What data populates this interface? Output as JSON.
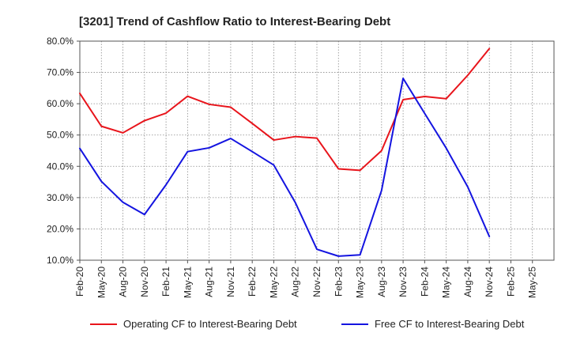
{
  "chart_data": {
    "type": "line",
    "title": "[3201]  Trend of Cashflow Ratio to Interest-Bearing Debt",
    "xlabel": "",
    "ylabel": "",
    "categories": [
      "Feb-20",
      "May-20",
      "Aug-20",
      "Nov-20",
      "Feb-21",
      "May-21",
      "Aug-21",
      "Nov-21",
      "Feb-22",
      "May-22",
      "Aug-22",
      "Nov-22",
      "Feb-23",
      "May-23",
      "Aug-23",
      "Nov-23",
      "Feb-24",
      "May-24",
      "Aug-24",
      "Nov-24",
      "Feb-25",
      "May-25"
    ],
    "ylim": [
      10,
      80
    ],
    "yticks": [
      10,
      20,
      30,
      40,
      50,
      60,
      70,
      80
    ],
    "ytick_labels": [
      "10.0%",
      "20.0%",
      "30.0%",
      "40.0%",
      "50.0%",
      "60.0%",
      "70.0%",
      "80.0%"
    ],
    "grid": true,
    "legend_position": "bottom",
    "series": [
      {
        "name": "Operating CF to Interest-Bearing Debt",
        "color": "#e8141b",
        "values": [
          63.3,
          52.8,
          50.7,
          54.6,
          57.0,
          62.4,
          59.8,
          58.9,
          53.7,
          48.4,
          49.5,
          49.0,
          39.2,
          38.7,
          45.0,
          61.3,
          62.3,
          61.6,
          69.1,
          77.6,
          null,
          null
        ]
      },
      {
        "name": "Free CF to Interest-Bearing Debt",
        "color": "#1414e0",
        "values": [
          45.7,
          35.2,
          28.5,
          24.6,
          34.1,
          44.7,
          45.9,
          48.9,
          44.7,
          40.4,
          28.4,
          13.5,
          11.3,
          11.7,
          32.3,
          68.1,
          56.9,
          45.8,
          33.4,
          17.6,
          null,
          null
        ]
      }
    ]
  }
}
